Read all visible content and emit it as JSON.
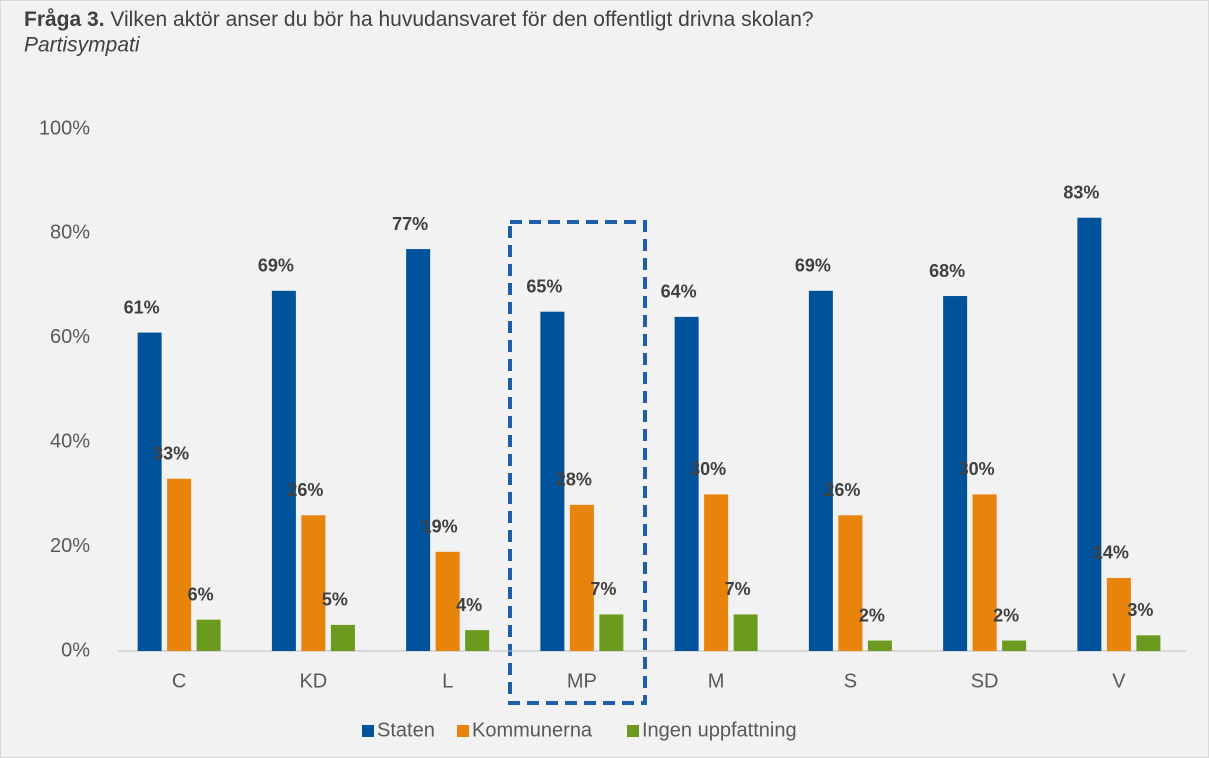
{
  "chart_data": {
    "type": "bar",
    "title": {
      "lead": "Fråga 3.",
      "text": "Vilken aktör anser du bör ha huvudansvaret för den offentligt drivna skolan?"
    },
    "subtitle": "Partisympati",
    "categories": [
      "C",
      "KD",
      "L",
      "MP",
      "M",
      "S",
      "SD",
      "V"
    ],
    "series": [
      {
        "name": "Staten",
        "color": "#00529b",
        "values": [
          61,
          69,
          77,
          65,
          64,
          69,
          68,
          83
        ],
        "value_labels": [
          "61%",
          "69%",
          "77%",
          "65%",
          "64%",
          "69%",
          "68%",
          "83%"
        ]
      },
      {
        "name": "Kommunerna",
        "color": "#e8830c",
        "values": [
          33,
          26,
          19,
          28,
          30,
          26,
          30,
          14
        ],
        "value_labels": [
          "33%",
          "26%",
          "19%",
          "28%",
          "30%",
          "26%",
          "30%",
          "14%"
        ]
      },
      {
        "name": "Ingen uppfattning",
        "color": "#6b9a1f",
        "values": [
          6,
          5,
          4,
          7,
          7,
          2,
          2,
          3
        ],
        "value_labels": [
          "6%",
          "5%",
          "4%",
          "7%",
          "7%",
          "2%",
          "2%",
          "3%"
        ]
      }
    ],
    "ylim": [
      0,
      100
    ],
    "yticks": [
      {
        "value": 0,
        "label": "0%"
      },
      {
        "value": 20,
        "label": "20%"
      },
      {
        "value": 40,
        "label": "40%"
      },
      {
        "value": 60,
        "label": "60%"
      },
      {
        "value": 80,
        "label": "80%"
      },
      {
        "value": 100,
        "label": "100%"
      }
    ],
    "grid": false,
    "legend": "bottom"
  }
}
